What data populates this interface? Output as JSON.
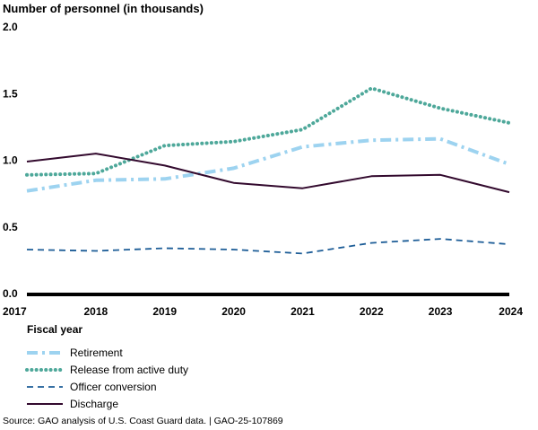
{
  "chart_data": {
    "type": "line",
    "title": "",
    "ylabel": "Number of personnel (in thousands)",
    "xlabel": "Fiscal year",
    "x": [
      "2017",
      "2018",
      "2019",
      "2020",
      "2021",
      "2022",
      "2023",
      "2024"
    ],
    "ylim": [
      0,
      2.0
    ],
    "yticks": [
      "0.0",
      "0.5",
      "1.0",
      "1.5",
      "2.0"
    ],
    "grid": false,
    "legend_position": "bottom-left",
    "series": [
      {
        "name": "Retirement",
        "values": [
          0.77,
          0.85,
          0.86,
          0.94,
          1.1,
          1.15,
          1.16,
          0.97
        ],
        "color": "#9dd3f0",
        "style": "dash-dot"
      },
      {
        "name": "Release from active duty",
        "values": [
          0.89,
          0.9,
          1.11,
          1.14,
          1.23,
          1.54,
          1.39,
          1.28
        ],
        "color": "#4ea89a",
        "style": "dotted"
      },
      {
        "name": "Officer conversion",
        "values": [
          0.33,
          0.32,
          0.34,
          0.33,
          0.3,
          0.38,
          0.41,
          0.37
        ],
        "color": "#1d5d97",
        "style": "dashed"
      },
      {
        "name": "Discharge",
        "values": [
          0.99,
          1.05,
          0.96,
          0.83,
          0.79,
          0.88,
          0.89,
          0.76
        ],
        "color": "#330a2e",
        "style": "solid"
      }
    ]
  },
  "source": "Source: GAO analysis of U.S. Coast Guard data.  |  GAO-25-107869"
}
